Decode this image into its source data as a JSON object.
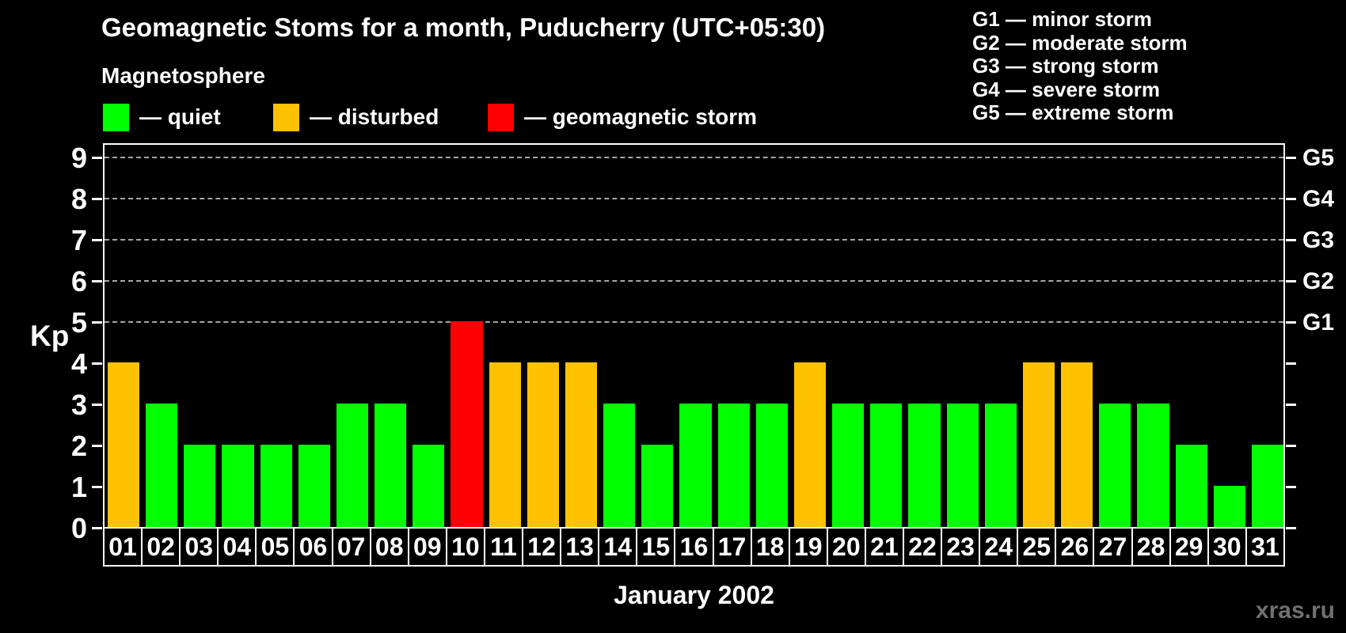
{
  "header": {
    "title": "Geomagnetic Stoms for a month, Puducherry (UTC+05:30)"
  },
  "legend": {
    "title": "Magnetosphere",
    "items": [
      {
        "label": "— quiet",
        "status": "quiet"
      },
      {
        "label": "— disturbed",
        "status": "disturbed"
      },
      {
        "label": "— geomagnetic storm",
        "status": "storm"
      }
    ]
  },
  "g_legend": {
    "items": [
      "G1 — minor storm",
      "G2 — moderate storm",
      "G3 — strong storm",
      "G4 — severe storm",
      "G5 — extreme storm"
    ]
  },
  "colors": {
    "quiet": "#00ff00",
    "disturbed": "#ffc200",
    "storm": "#ff0000",
    "background": "#000000",
    "grid": "#a6a6a6",
    "frame": "#ffffff",
    "watermark": "#707070"
  },
  "chart_data": {
    "type": "bar",
    "title": "Geomagnetic Stoms for a month, Puducherry (UTC+05:30)",
    "xlabel": "January 2002",
    "ylabel": "Kp",
    "ylim": [
      0,
      9.4
    ],
    "grid": "dashed horizontal lines at Kp 5-9 only",
    "legend_position": "top",
    "yticks": [
      0,
      1,
      2,
      3,
      4,
      5,
      6,
      7,
      8,
      9
    ],
    "gridlines_at": [
      5,
      6,
      7,
      8,
      9
    ],
    "right_axis": [
      {
        "kp": 5,
        "label": "G1"
      },
      {
        "kp": 6,
        "label": "G2"
      },
      {
        "kp": 7,
        "label": "G3"
      },
      {
        "kp": 8,
        "label": "G4"
      },
      {
        "kp": 9,
        "label": "G5"
      }
    ],
    "categories": [
      "01",
      "02",
      "03",
      "04",
      "05",
      "06",
      "07",
      "08",
      "09",
      "10",
      "11",
      "12",
      "13",
      "14",
      "15",
      "16",
      "17",
      "18",
      "19",
      "20",
      "21",
      "22",
      "23",
      "24",
      "25",
      "26",
      "27",
      "28",
      "29",
      "30",
      "31"
    ],
    "values": [
      4,
      3,
      2,
      2,
      2,
      2,
      3,
      3,
      2,
      5,
      4,
      4,
      4,
      3,
      2,
      3,
      3,
      3,
      4,
      3,
      3,
      3,
      3,
      3,
      4,
      4,
      3,
      3,
      2,
      1,
      2
    ],
    "status": [
      "disturbed",
      "quiet",
      "quiet",
      "quiet",
      "quiet",
      "quiet",
      "quiet",
      "quiet",
      "quiet",
      "storm",
      "disturbed",
      "disturbed",
      "disturbed",
      "quiet",
      "quiet",
      "quiet",
      "quiet",
      "quiet",
      "disturbed",
      "quiet",
      "quiet",
      "quiet",
      "quiet",
      "quiet",
      "disturbed",
      "disturbed",
      "quiet",
      "quiet",
      "quiet",
      "quiet",
      "quiet"
    ]
  },
  "footer": {
    "watermark": "xras.ru"
  }
}
